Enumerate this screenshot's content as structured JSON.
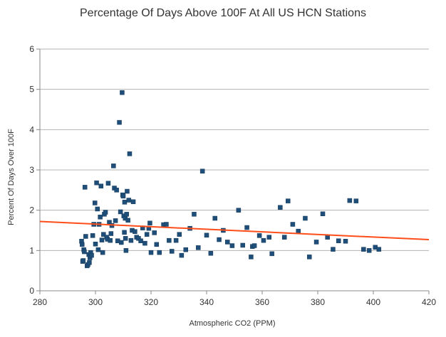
{
  "chart_data": {
    "type": "scatter",
    "title": "Percentage Of Days Above 100F At All US HCN Stations",
    "xlabel": "Atmospheric CO2 (PPM)",
    "ylabel": "Percent Of Days Over 100F",
    "xlim": [
      280,
      420
    ],
    "ylim": [
      0,
      6
    ],
    "x_ticks": [
      "280",
      "300",
      "320",
      "340",
      "360",
      "380",
      "400",
      "420"
    ],
    "y_ticks": [
      "0",
      "1",
      "2",
      "3",
      "4",
      "5",
      "6"
    ],
    "grid": "horizontal",
    "colors": {
      "marker": "#1f4e79",
      "trendline": "#ff4d1a",
      "grid": "#b3b3b3",
      "axis": "#888888"
    },
    "series": [
      {
        "marker": "square",
        "points": [
          [
            295.0,
            1.23
          ],
          [
            295.2,
            1.15
          ],
          [
            295.4,
            0.73
          ],
          [
            295.6,
            0.75
          ],
          [
            295.8,
            1.02
          ],
          [
            296.0,
            0.97
          ],
          [
            296.2,
            2.57
          ],
          [
            296.5,
            1.35
          ],
          [
            297.0,
            0.62
          ],
          [
            297.3,
            0.65
          ],
          [
            297.6,
            0.9
          ],
          [
            297.8,
            0.7
          ],
          [
            298.0,
            0.82
          ],
          [
            298.3,
            0.95
          ],
          [
            298.6,
            0.88
          ],
          [
            299.0,
            1.37
          ],
          [
            299.4,
            1.65
          ],
          [
            299.8,
            2.18
          ],
          [
            300.0,
            1.16
          ],
          [
            300.4,
            2.68
          ],
          [
            300.7,
            2.03
          ],
          [
            301.0,
            1.02
          ],
          [
            301.3,
            1.65
          ],
          [
            301.7,
            1.83
          ],
          [
            302.0,
            2.6
          ],
          [
            302.3,
            1.26
          ],
          [
            302.6,
            0.95
          ],
          [
            302.9,
            1.4
          ],
          [
            303.2,
            1.9
          ],
          [
            303.6,
            1.95
          ],
          [
            304.0,
            1.33
          ],
          [
            304.3,
            1.28
          ],
          [
            304.6,
            2.67
          ],
          [
            305.0,
            1.7
          ],
          [
            305.3,
            1.25
          ],
          [
            305.6,
            1.42
          ],
          [
            305.9,
            1.62
          ],
          [
            306.5,
            3.1
          ],
          [
            306.8,
            2.55
          ],
          [
            307.2,
            1.74
          ],
          [
            307.6,
            2.5
          ],
          [
            308.0,
            1.24
          ],
          [
            308.6,
            4.18
          ],
          [
            309.0,
            1.96
          ],
          [
            309.3,
            1.2
          ],
          [
            309.6,
            4.92
          ],
          [
            309.8,
            2.38
          ],
          [
            310.0,
            2.35
          ],
          [
            310.2,
            1.86
          ],
          [
            310.4,
            1.45
          ],
          [
            310.5,
            2.2
          ],
          [
            310.7,
            1.8
          ],
          [
            310.8,
            1.3
          ],
          [
            311.0,
            1.0
          ],
          [
            311.2,
            1.9
          ],
          [
            311.4,
            2.47
          ],
          [
            311.7,
            1.75
          ],
          [
            312.0,
            2.25
          ],
          [
            312.3,
            3.4
          ],
          [
            312.8,
            1.25
          ],
          [
            313.2,
            1.5
          ],
          [
            313.6,
            2.21
          ],
          [
            314.2,
            1.47
          ],
          [
            314.8,
            1.33
          ],
          [
            315.5,
            1.3
          ],
          [
            316.3,
            1.24
          ],
          [
            317.0,
            1.56
          ],
          [
            317.8,
            1.18
          ],
          [
            318.5,
            1.4
          ],
          [
            319.2,
            1.55
          ],
          [
            319.6,
            1.68
          ],
          [
            320.0,
            0.95
          ],
          [
            321.2,
            1.44
          ],
          [
            322.0,
            1.15
          ],
          [
            323.0,
            0.95
          ],
          [
            324.5,
            1.64
          ],
          [
            325.5,
            1.65
          ],
          [
            326.5,
            1.25
          ],
          [
            327.5,
            0.98
          ],
          [
            329.0,
            1.25
          ],
          [
            330.2,
            1.4
          ],
          [
            331.0,
            0.88
          ],
          [
            332.5,
            1.02
          ],
          [
            334.0,
            1.55
          ],
          [
            335.5,
            1.9
          ],
          [
            337.0,
            1.07
          ],
          [
            338.5,
            2.97
          ],
          [
            340.0,
            1.38
          ],
          [
            341.5,
            0.93
          ],
          [
            343.0,
            1.8
          ],
          [
            344.5,
            1.27
          ],
          [
            346.0,
            1.5
          ],
          [
            347.5,
            1.21
          ],
          [
            349.2,
            1.12
          ],
          [
            351.5,
            2.0
          ],
          [
            353.0,
            1.13
          ],
          [
            354.5,
            1.57
          ],
          [
            356.0,
            0.84
          ],
          [
            356.5,
            1.1
          ],
          [
            357.2,
            1.12
          ],
          [
            359.0,
            1.37
          ],
          [
            360.5,
            1.25
          ],
          [
            362.5,
            1.33
          ],
          [
            363.5,
            0.92
          ],
          [
            366.5,
            2.07
          ],
          [
            368.0,
            1.33
          ],
          [
            369.3,
            2.23
          ],
          [
            371.0,
            1.65
          ],
          [
            373.0,
            1.48
          ],
          [
            375.5,
            1.8
          ],
          [
            377.0,
            0.84
          ],
          [
            379.5,
            1.21
          ],
          [
            381.8,
            1.91
          ],
          [
            383.5,
            1.33
          ],
          [
            385.5,
            1.03
          ],
          [
            387.5,
            1.24
          ],
          [
            390.0,
            1.23
          ],
          [
            391.5,
            2.24
          ],
          [
            393.8,
            2.23
          ],
          [
            396.5,
            1.03
          ],
          [
            398.5,
            1.0
          ],
          [
            400.7,
            1.08
          ],
          [
            402.0,
            1.03
          ]
        ]
      }
    ],
    "trendline": {
      "x": [
        280,
        420
      ],
      "y": [
        1.72,
        1.27
      ]
    }
  }
}
